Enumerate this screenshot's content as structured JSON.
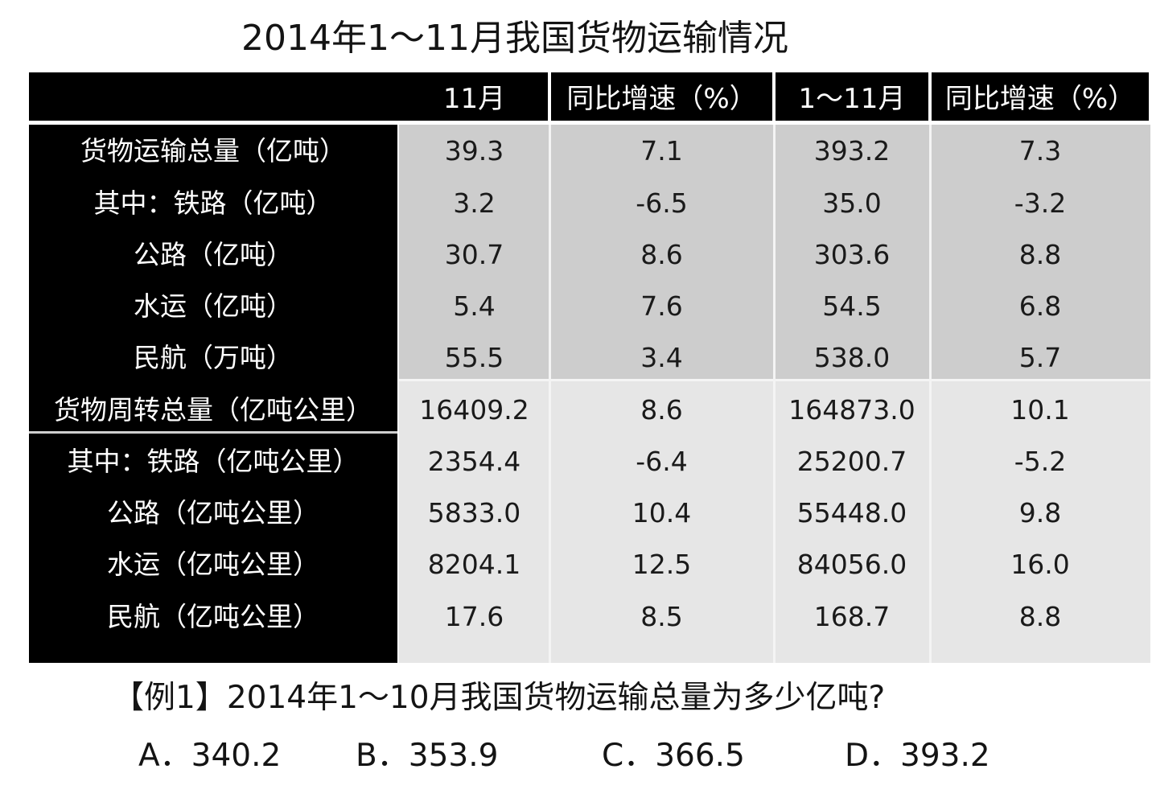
{
  "title": "2014年1～11月我国货物运输情况",
  "columns": [
    "11月",
    "同比增速（%）",
    "1～11月",
    "同比增速（%）"
  ],
  "rows": [
    {
      "label": "货物运输总量（亿吨）",
      "values": [
        "39.3",
        "7.1",
        "393.2",
        "7.3"
      ]
    },
    {
      "label": "其中：铁路（亿吨）",
      "values": [
        "3.2",
        "-6.5",
        "35.0",
        "-3.2"
      ]
    },
    {
      "label": "公路（亿吨）",
      "values": [
        "30.7",
        "8.6",
        "303.6",
        "8.8"
      ]
    },
    {
      "label": "水运（亿吨）",
      "values": [
        "5.4",
        "7.6",
        "54.5",
        "6.8"
      ]
    },
    {
      "label": "民航（万吨）",
      "values": [
        "55.5",
        "3.4",
        "538.0",
        "5.7"
      ]
    },
    {
      "label": "货物周转总量（亿吨公里）",
      "values": [
        "16409.2",
        "8.6",
        "164873.0",
        "10.1"
      ]
    },
    {
      "label": "其中：铁路（亿吨公里）",
      "values": [
        "2354.4",
        "-6.4",
        "25200.7",
        "-5.2"
      ]
    },
    {
      "label": "公路（亿吨公里）",
      "values": [
        "5833.0",
        "10.4",
        "55448.0",
        "9.8"
      ]
    },
    {
      "label": "水运（亿吨公里）",
      "values": [
        "8204.1",
        "12.5",
        "84056.0",
        "16.0"
      ]
    },
    {
      "label": "民航（亿吨公里）",
      "values": [
        "17.6",
        "8.5",
        "168.7",
        "8.8"
      ]
    }
  ],
  "question": "【例1】2014年1～10月我国货物运输总量为多少亿吨?",
  "options": [
    "A．340.2",
    "B．353.9",
    "C．366.5",
    "D．393.2"
  ]
}
